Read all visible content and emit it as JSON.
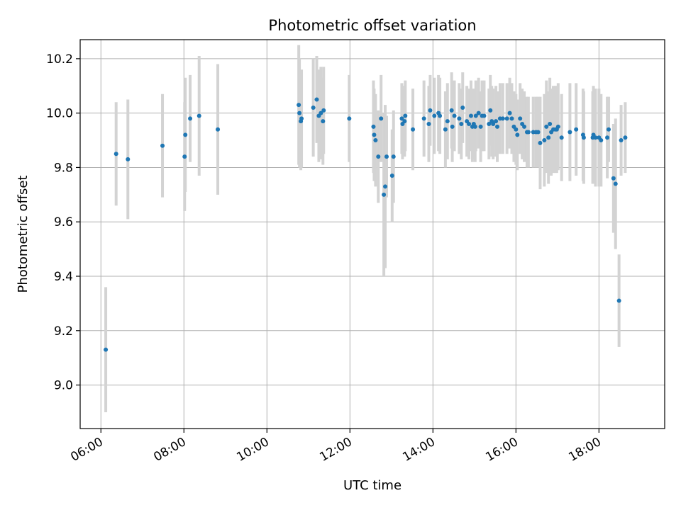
{
  "chart_data": {
    "type": "scatter",
    "title": "Photometric offset variation",
    "xlabel": "UTC time",
    "ylabel": "Photometric offset",
    "x_tick_labels": [
      "06:00",
      "08:00",
      "10:00",
      "12:00",
      "14:00",
      "16:00",
      "18:00"
    ],
    "y_tick_labels": [
      "9.0",
      "9.2",
      "9.4",
      "9.6",
      "9.8",
      "10.0",
      "10.2"
    ],
    "xlim": [
      "05:30",
      "19:35"
    ],
    "ylim": [
      8.84,
      10.27
    ],
    "grid": true,
    "colors": {
      "points": "#1f77b4",
      "errorbars": "#d3d3d3",
      "grid": "#b0b0b0"
    },
    "series": [
      {
        "x": [
          "06:07",
          "06:22",
          "06:39",
          "07:29",
          "08:01",
          "08:02",
          "08:09",
          "08:22",
          "08:49",
          "10:46",
          "10:47",
          "10:49",
          "10:50",
          "11:07",
          "11:12",
          "11:15",
          "11:18",
          "11:21",
          "11:22",
          "11:59",
          "12:34",
          "12:35",
          "12:37",
          "12:41",
          "12:45",
          "12:49",
          "12:51",
          "12:53",
          "13:01",
          "13:03",
          "13:15",
          "13:16",
          "13:19",
          "13:20",
          "13:31",
          "13:47",
          "13:54",
          "13:56",
          "14:02",
          "14:08",
          "14:10",
          "14:18",
          "14:21",
          "14:27",
          "14:28",
          "14:31",
          "14:38",
          "14:41",
          "14:43",
          "14:49",
          "14:52",
          "14:55",
          "14:57",
          "14:59",
          "15:01",
          "15:02",
          "15:06",
          "15:09",
          "15:11",
          "15:14",
          "15:21",
          "15:23",
          "15:25",
          "15:27",
          "15:31",
          "15:33",
          "15:37",
          "15:41",
          "15:47",
          "15:51",
          "15:54",
          "15:57",
          "16:00",
          "16:02",
          "16:06",
          "16:09",
          "16:12",
          "16:16",
          "16:18",
          "16:25",
          "16:29",
          "16:32",
          "16:35",
          "16:41",
          "16:44",
          "16:47",
          "16:49",
          "16:51",
          "16:54",
          "16:57",
          "16:59",
          "17:01",
          "17:06",
          "17:18",
          "17:27",
          "17:37",
          "17:38",
          "17:51",
          "17:52",
          "17:55",
          "18:00",
          "18:03",
          "18:12",
          "18:14",
          "18:21",
          "18:24",
          "18:29",
          "18:32",
          "18:38"
        ],
        "y": [
          9.13,
          9.85,
          9.83,
          9.88,
          9.84,
          9.92,
          9.98,
          9.99,
          9.94,
          10.03,
          10.0,
          9.97,
          9.98,
          10.02,
          10.05,
          9.99,
          10.0,
          9.97,
          10.01,
          9.98,
          9.95,
          9.92,
          9.9,
          9.84,
          9.98,
          9.7,
          9.73,
          9.84,
          9.77,
          9.84,
          9.98,
          9.96,
          9.97,
          9.99,
          9.94,
          9.98,
          9.96,
          10.01,
          9.99,
          10.0,
          9.99,
          9.94,
          9.97,
          10.01,
          9.95,
          9.99,
          9.98,
          9.96,
          10.02,
          9.97,
          9.96,
          9.99,
          9.95,
          9.96,
          9.95,
          9.99,
          10.0,
          9.95,
          9.99,
          9.99,
          9.96,
          10.01,
          9.97,
          9.96,
          9.97,
          9.95,
          9.98,
          9.98,
          9.98,
          10.0,
          9.98,
          9.95,
          9.94,
          9.92,
          9.98,
          9.96,
          9.95,
          9.93,
          9.93,
          9.93,
          9.93,
          9.93,
          9.89,
          9.9,
          9.95,
          9.91,
          9.96,
          9.93,
          9.94,
          9.94,
          9.94,
          9.95,
          9.91,
          9.93,
          9.94,
          9.92,
          9.91,
          9.91,
          9.92,
          9.91,
          9.91,
          9.9,
          9.91,
          9.94,
          9.76,
          9.74,
          9.31,
          9.9,
          9.91
        ],
        "err": [
          0.23,
          0.19,
          0.22,
          0.19,
          0.2,
          0.21,
          0.16,
          0.22,
          0.24,
          0.22,
          0.2,
          0.18,
          0.18,
          0.18,
          0.16,
          0.17,
          0.17,
          0.16,
          0.16,
          0.16,
          0.17,
          0.17,
          0.17,
          0.17,
          0.16,
          0.3,
          0.3,
          0.15,
          0.17,
          0.17,
          0.13,
          0.13,
          0.13,
          0.13,
          0.15,
          0.14,
          0.14,
          0.13,
          0.14,
          0.14,
          0.14,
          0.14,
          0.14,
          0.14,
          0.13,
          0.13,
          0.13,
          0.13,
          0.13,
          0.13,
          0.13,
          0.13,
          0.13,
          0.13,
          0.13,
          0.13,
          0.13,
          0.13,
          0.13,
          0.13,
          0.13,
          0.13,
          0.13,
          0.13,
          0.13,
          0.13,
          0.13,
          0.13,
          0.13,
          0.13,
          0.13,
          0.13,
          0.13,
          0.13,
          0.13,
          0.13,
          0.13,
          0.13,
          0.13,
          0.13,
          0.13,
          0.13,
          0.17,
          0.17,
          0.17,
          0.17,
          0.17,
          0.16,
          0.16,
          0.16,
          0.16,
          0.16,
          0.16,
          0.18,
          0.17,
          0.17,
          0.17,
          0.17,
          0.18,
          0.18,
          0.18,
          0.17,
          0.15,
          0.12,
          0.2,
          0.24,
          0.17,
          0.13,
          0.13
        ]
      }
    ]
  }
}
